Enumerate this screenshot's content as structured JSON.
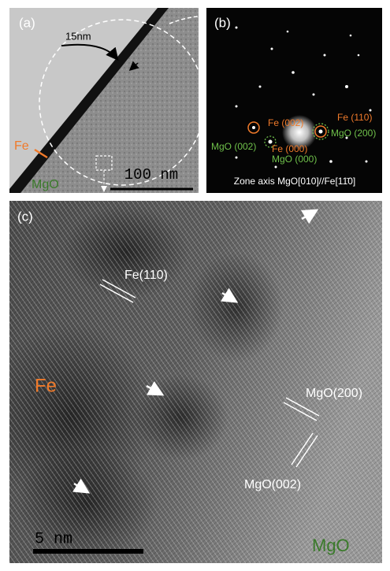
{
  "panels": {
    "a": {
      "label": "(a)",
      "thickness": "15nm",
      "fe": "Fe",
      "mgo": "MgO",
      "scale_bar": "100 nm"
    },
    "b": {
      "label": "(b)",
      "spots": [
        "Fe (002)",
        "Fe (110)",
        "MgO (002)",
        "MgO (200)",
        "Fe (000)",
        "MgO (000)"
      ],
      "zone_axis": "Zone axis MgO[010]//Fe[11̄0]"
    },
    "c": {
      "label": "(c)",
      "fe_plane": "Fe(110)",
      "fe": "Fe",
      "mgo_200": "MgO(200)",
      "mgo_002": "MgO(002)",
      "scale_bar": "5 nm",
      "mgo": "MgO"
    }
  }
}
